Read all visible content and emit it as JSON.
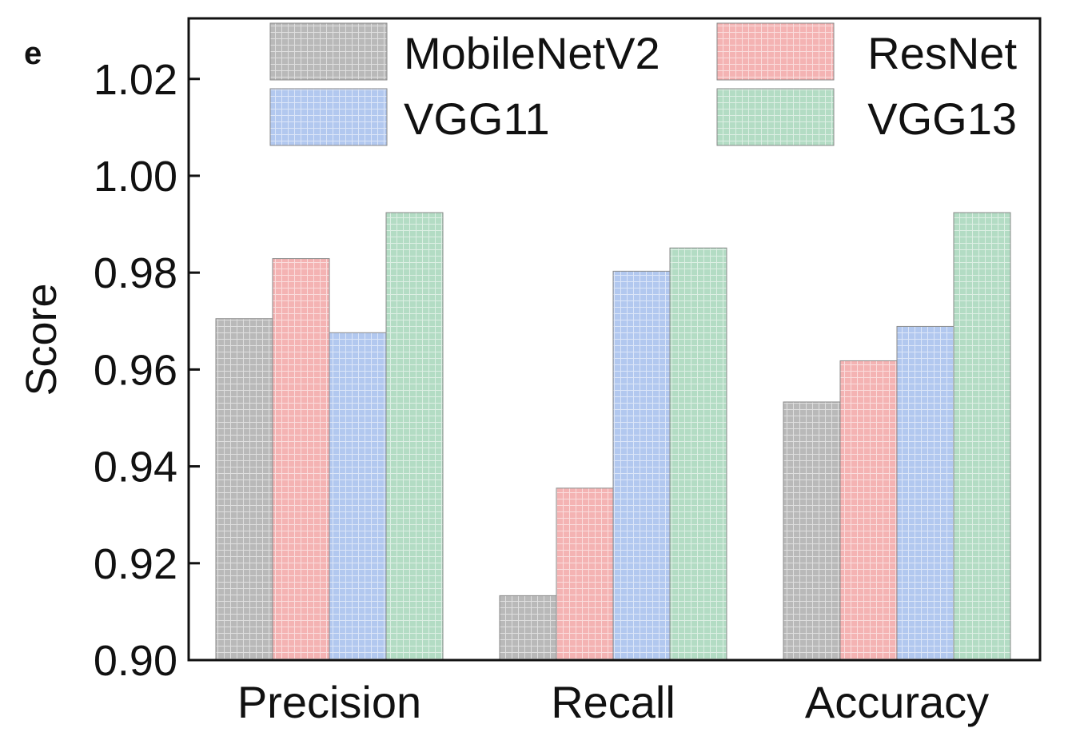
{
  "panel_label": "e",
  "chart_data": {
    "type": "bar",
    "categories": [
      "Precision",
      "Recall",
      "Accuracy"
    ],
    "series": [
      {
        "name": "MobileNetV2",
        "color": "#b9b9b9",
        "values": [
          0.9705,
          0.9133,
          0.9533
        ]
      },
      {
        "name": "ResNet",
        "color": "#f4b3b3",
        "values": [
          0.9829,
          0.9355,
          0.9618
        ]
      },
      {
        "name": "VGG11",
        "color": "#b2c8ef",
        "values": [
          0.9676,
          0.9803,
          0.9689
        ]
      },
      {
        "name": "VGG13",
        "color": "#b3dcc4",
        "values": [
          0.9924,
          0.9851,
          0.9924
        ]
      }
    ],
    "xlabel": "",
    "ylabel": "Score",
    "ylim": [
      0.9,
      1.0325
    ],
    "yticks": [
      "0.90",
      "0.92",
      "0.94",
      "0.96",
      "0.98",
      "1.00",
      "1.02"
    ],
    "grid": false,
    "legend_position": "top"
  }
}
